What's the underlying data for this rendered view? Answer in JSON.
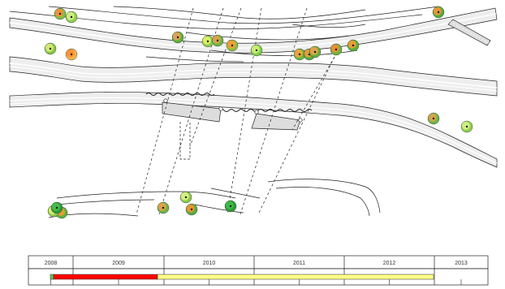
{
  "timeline": {
    "years": [
      "2008",
      "2009",
      "2010",
      "2011",
      "2012",
      "2013"
    ]
  },
  "colors": {
    "road_fill": "#eeeeee",
    "line": "#222222",
    "timeline_red": "#ff0000",
    "timeline_yellow": "#ffff88",
    "timeline_green_tick": "#66cc44"
  },
  "markers": [
    {
      "color": "mixed-orange-green",
      "inner": "#ff8a3a",
      "outer": "#7dc242"
    },
    {
      "color": "green-yellow",
      "inner": "#d9f28a",
      "outer": "#8fd14f"
    },
    {
      "color": "mixed-orange-green",
      "inner": "#f2a05a",
      "outer": "#58b43a"
    },
    {
      "color": "yellow-green",
      "inner": "#e7f56a",
      "outer": "#8fcf4c"
    },
    {
      "color": "mixed-orange-green",
      "inner": "#e8a050",
      "outer": "#6ab844"
    },
    {
      "color": "mixed-orange-green",
      "inner": "#ff9a33",
      "outer": "#90c040"
    },
    {
      "color": "green-yellow",
      "inner": "#d8f27a",
      "outer": "#7fcf4a"
    },
    {
      "color": "mixed-orange-green",
      "inner": "#ffa040",
      "outer": "#6cbc3c"
    },
    {
      "color": "mixed-orange-green",
      "inner": "#ff9a33",
      "outer": "#50b040"
    },
    {
      "color": "mixed-orange-green",
      "inner": "#f6a04c",
      "outer": "#62b23c"
    },
    {
      "color": "mixed-orange-green",
      "inner": "#ff8a30",
      "outer": "#68b63c"
    },
    {
      "color": "mixed-orange-green",
      "inner": "#ff9233",
      "outer": "#54ae3c"
    },
    {
      "color": "yellow-green",
      "inner": "#dcf07a",
      "outer": "#86c848"
    },
    {
      "color": "orange",
      "inner": "#ff8c32",
      "outer": "#f6b64a"
    },
    {
      "color": "mixed-orange-green",
      "inner": "#e8a050",
      "outer": "#6ab844"
    },
    {
      "color": "green-yellow",
      "inner": "#d9f28a",
      "outer": "#8fd14f"
    },
    {
      "color": "mixed-orange-green",
      "inner": "#ff9a33",
      "outer": "#58b43a"
    },
    {
      "color": "green-yellow",
      "inner": "#e2f58c",
      "outer": "#8ccc4c"
    },
    {
      "color": "green",
      "inner": "#3fc04a",
      "outer": "#2c9c34"
    },
    {
      "color": "mixed-orange-green",
      "inner": "#ff9233",
      "outer": "#54ae3c"
    },
    {
      "color": "mixed-orange-green",
      "inner": "#f0a04a",
      "outer": "#6ab844"
    },
    {
      "color": "green",
      "inner": "#4bc04c",
      "outer": "#2c9c34"
    }
  ]
}
